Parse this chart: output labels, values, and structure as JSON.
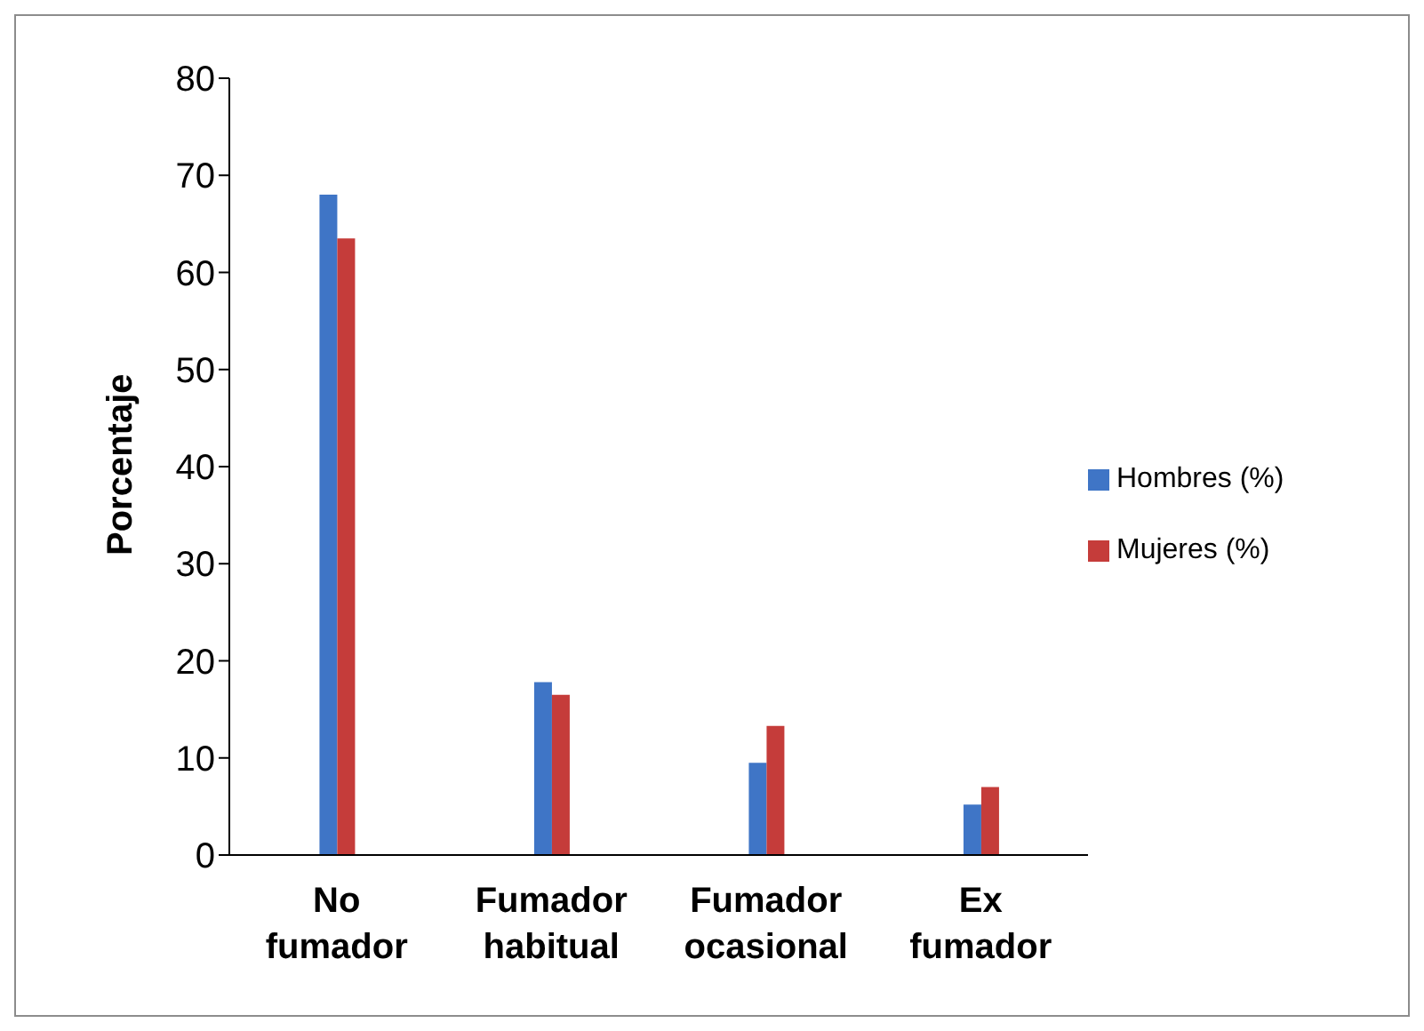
{
  "chart_data": {
    "type": "bar",
    "ylabel": "Porcentaje",
    "categories": [
      "No fumador",
      "Fumador habitual",
      "Fumador ocasional",
      "Ex fumador"
    ],
    "series": [
      {
        "name": "Hombres (%)",
        "color": "#3f75c6",
        "values": [
          68,
          17.8,
          9.5,
          5.2
        ]
      },
      {
        "name": "Mujeres (%)",
        "color": "#c53c3a",
        "values": [
          63.5,
          16.5,
          13.3,
          7
        ]
      }
    ],
    "ylim": [
      0,
      80
    ],
    "yticks": [
      0,
      10,
      20,
      30,
      40,
      50,
      60,
      70,
      80
    ],
    "grid": false,
    "legend": "right"
  }
}
